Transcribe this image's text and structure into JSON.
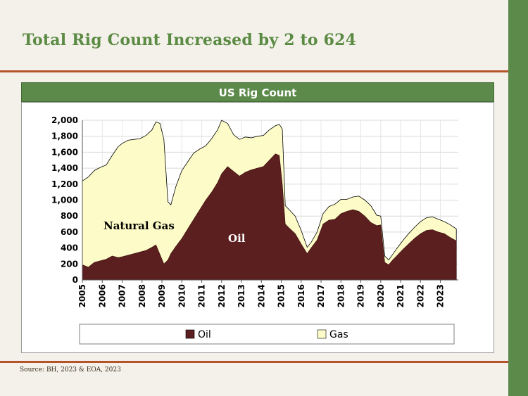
{
  "slide": {
    "title": "Total Rig Count Increased by 2 to 624",
    "source": "Source: BH, 2023 & EOA, 2023"
  },
  "colors": {
    "oil": "#5c1f1f",
    "gas": "#fdfcc8",
    "accent_green": "#5c8a4a",
    "rule": "#b5532b"
  },
  "chart_data": {
    "type": "area",
    "title": "US Rig Count",
    "stacked": true,
    "x_ticks": [
      "2005",
      "2006",
      "2007",
      "2008",
      "2009",
      "2010",
      "2011",
      "2012",
      "2013",
      "2014",
      "2015",
      "2016",
      "2017",
      "2018",
      "2019",
      "2020",
      "2021",
      "2022",
      "2023"
    ],
    "ylim": [
      0,
      2000
    ],
    "y_ticks": [
      "0",
      "200",
      "400",
      "600",
      "800",
      "1,000",
      "1,200",
      "1,400",
      "1,600",
      "1,800",
      "2,000"
    ],
    "grid": true,
    "legend_position": "bottom",
    "annotations": [
      "Natural Gas",
      "Oil"
    ],
    "x": [
      2005.0,
      2005.3,
      2005.6,
      2005.9,
      2006.2,
      2006.5,
      2006.8,
      2007.0,
      2007.3,
      2007.6,
      2007.9,
      2008.2,
      2008.5,
      2008.7,
      2008.9,
      2009.1,
      2009.3,
      2009.45,
      2009.7,
      2010.0,
      2010.3,
      2010.6,
      2010.9,
      2011.2,
      2011.5,
      2011.8,
      2012.0,
      2012.3,
      2012.6,
      2012.9,
      2013.2,
      2013.5,
      2013.8,
      2014.1,
      2014.4,
      2014.7,
      2014.9,
      2015.05,
      2015.2,
      2015.4,
      2015.7,
      2016.0,
      2016.3,
      2016.5,
      2016.8,
      2017.1,
      2017.4,
      2017.7,
      2018.0,
      2018.3,
      2018.6,
      2018.9,
      2019.2,
      2019.5,
      2019.8,
      2020.0,
      2020.2,
      2020.4,
      2020.6,
      2020.8,
      2021.1,
      2021.4,
      2021.7,
      2022.0,
      2022.3,
      2022.6,
      2022.9,
      2023.2,
      2023.5,
      2023.8
    ],
    "series": [
      {
        "name": "Oil",
        "values": [
          190,
          160,
          220,
          240,
          260,
          300,
          280,
          290,
          310,
          330,
          350,
          370,
          410,
          440,
          320,
          200,
          250,
          330,
          420,
          520,
          640,
          760,
          880,
          1000,
          1100,
          1220,
          1330,
          1420,
          1360,
          1300,
          1350,
          1380,
          1400,
          1420,
          1500,
          1580,
          1560,
          1200,
          700,
          650,
          580,
          450,
          330,
          400,
          500,
          700,
          750,
          760,
          830,
          860,
          880,
          860,
          800,
          720,
          680,
          690,
          220,
          190,
          250,
          300,
          380,
          450,
          520,
          580,
          620,
          630,
          600,
          580,
          530,
          490
        ]
      },
      {
        "name": "Gas",
        "values": [
          1050,
          1130,
          1150,
          1170,
          1180,
          1260,
          1390,
          1420,
          1440,
          1430,
          1420,
          1440,
          1470,
          1540,
          1640,
          1560,
          730,
          610,
          750,
          850,
          840,
          830,
          760,
          680,
          670,
          660,
          670,
          540,
          460,
          460,
          440,
          400,
          400,
          390,
          380,
          350,
          390,
          690,
          230,
          230,
          220,
          170,
          80,
          70,
          100,
          130,
          170,
          190,
          180,
          150,
          160,
          190,
          200,
          210,
          130,
          110,
          80,
          60,
          70,
          90,
          110,
          130,
          140,
          150,
          160,
          160,
          160,
          150,
          160,
          150
        ]
      }
    ],
    "legend": [
      "Oil",
      "Gas"
    ]
  }
}
